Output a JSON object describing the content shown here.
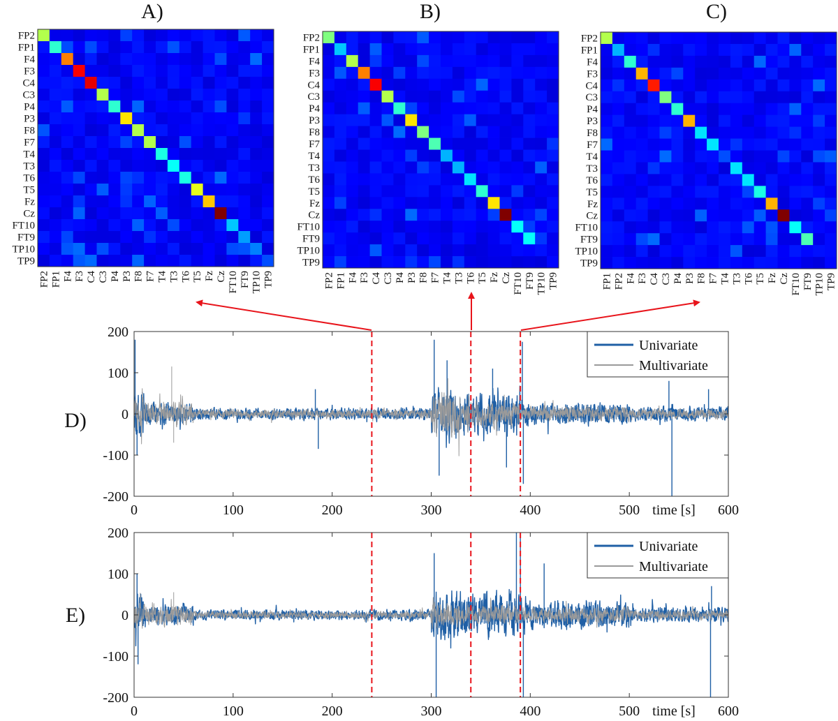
{
  "figure": {
    "labels": [
      "A)",
      "B)",
      "C)",
      "D)",
      "E)"
    ]
  },
  "chart_data": [
    {
      "type": "heatmap",
      "panel": "A)",
      "row_labels": [
        "FP2",
        "FP1",
        "F4",
        "F3",
        "C4",
        "C3",
        "P4",
        "P3",
        "F8",
        "F7",
        "T4",
        "T3",
        "T6",
        "T5",
        "Fz",
        "Cz",
        "FT10",
        "FT9",
        "TP10",
        "TP9"
      ],
      "col_labels": [
        "FP2",
        "FP1",
        "F4",
        "F3",
        "C4",
        "C3",
        "P4",
        "P3",
        "F8",
        "F7",
        "T4",
        "T3",
        "T6",
        "T5",
        "Fz",
        "Cz",
        "FT10",
        "FT9",
        "TP10",
        "TP9"
      ],
      "diagonal": [
        0.55,
        0.42,
        0.75,
        0.88,
        0.9,
        0.55,
        0.42,
        0.65,
        0.55,
        0.55,
        0.4,
        0.38,
        0.4,
        0.6,
        0.68,
        1.0,
        0.32,
        0.28,
        0.25,
        0.2
      ],
      "off_diagonal_level": 0.12,
      "colormap": "jet"
    },
    {
      "type": "heatmap",
      "panel": "B)",
      "row_labels": [
        "FP2",
        "FP1",
        "F4",
        "F3",
        "C4",
        "C3",
        "P4",
        "P3",
        "F8",
        "F7",
        "T4",
        "T3",
        "T6",
        "T5",
        "Fz",
        "Cz",
        "FT10",
        "FT9",
        "TP10",
        "TP9"
      ],
      "col_labels": [
        "FP2",
        "FP1",
        "F4",
        "F3",
        "C4",
        "C3",
        "P4",
        "P3",
        "F8",
        "F7",
        "T4",
        "T3",
        "T6",
        "T5",
        "Fz",
        "Cz",
        "FT10",
        "FT9",
        "TP10",
        "TP9"
      ],
      "diagonal": [
        0.5,
        0.32,
        0.55,
        0.75,
        0.88,
        0.55,
        0.42,
        0.65,
        0.5,
        0.45,
        0.3,
        0.3,
        0.35,
        0.42,
        0.65,
        1.0,
        0.38,
        0.38,
        0.14,
        0.13
      ],
      "off_diagonal_level": 0.12,
      "colormap": "jet"
    },
    {
      "type": "heatmap",
      "panel": "C)",
      "row_labels": [
        "FP2",
        "FP1",
        "F4",
        "F3",
        "C4",
        "C3",
        "P4",
        "P3",
        "F8",
        "F7",
        "T4",
        "T3",
        "T6",
        "T5",
        "Fz",
        "Cz",
        "FT10",
        "FT9",
        "TP10",
        "TP9"
      ],
      "col_labels": [
        "FP1",
        "FP2",
        "F4",
        "F3",
        "C4",
        "C3",
        "P4",
        "P3",
        "F8",
        "F7",
        "T4",
        "T3",
        "T6",
        "T5",
        "Fz",
        "Cz",
        "FT10",
        "FT9",
        "TP10",
        "TP9"
      ],
      "diagonal": [
        0.55,
        0.3,
        0.42,
        0.7,
        0.85,
        0.5,
        0.42,
        0.7,
        0.35,
        0.35,
        0.2,
        0.35,
        0.35,
        0.4,
        0.7,
        1.0,
        0.38,
        0.45,
        0.14,
        0.13
      ],
      "off_diagonal_level": 0.12,
      "colormap": "jet"
    },
    {
      "type": "line",
      "panel": "D)",
      "xlabel": "time [s]",
      "xlim": [
        0,
        600
      ],
      "ylim": [
        -200,
        200
      ],
      "xticks": [
        0,
        100,
        200,
        300,
        400,
        500,
        600
      ],
      "yticks": [
        200,
        100,
        0,
        -100,
        -200
      ],
      "ytick_labels": [
        "200",
        "100",
        "0",
        "-100",
        "-200"
      ],
      "markers": [
        240,
        340,
        390
      ],
      "series": [
        {
          "name": "Univariate",
          "color": "#1f5fa5",
          "segments": [
            {
              "t": [
                0,
                10
              ],
              "amp": 95
            },
            {
              "t": [
                10,
                60
              ],
              "amp": 45
            },
            {
              "t": [
                60,
                240
              ],
              "amp": 24
            },
            {
              "t": [
                240,
                300
              ],
              "amp": 24
            },
            {
              "t": [
                300,
                330
              ],
              "amp": 110
            },
            {
              "t": [
                330,
                390
              ],
              "amp": 85
            },
            {
              "t": [
                390,
                500
              ],
              "amp": 45
            },
            {
              "t": [
                500,
                600
              ],
              "amp": 30
            }
          ],
          "spikes": [
            [
              1,
              180
            ],
            [
              3,
              -100
            ],
            [
              183,
              60
            ],
            [
              186,
              -85
            ],
            [
              303,
              180
            ],
            [
              308,
              -150
            ],
            [
              316,
              130
            ],
            [
              362,
              110
            ],
            [
              376,
              -130
            ],
            [
              392,
              175
            ],
            [
              393,
              -170
            ],
            [
              540,
              80
            ],
            [
              543,
              -200
            ],
            [
              580,
              60
            ]
          ]
        },
        {
          "name": "Multivariate",
          "color": "#9a9a9a",
          "segments": [
            {
              "t": [
                0,
                10
              ],
              "amp": 70
            },
            {
              "t": [
                10,
                60
              ],
              "amp": 45
            },
            {
              "t": [
                60,
                240
              ],
              "amp": 18
            },
            {
              "t": [
                240,
                300
              ],
              "amp": 18
            },
            {
              "t": [
                300,
                330
              ],
              "amp": 100
            },
            {
              "t": [
                330,
                390
              ],
              "amp": 55
            },
            {
              "t": [
                390,
                500
              ],
              "amp": 30
            },
            {
              "t": [
                500,
                600
              ],
              "amp": 20
            }
          ],
          "spikes": [
            [
              38,
              115
            ],
            [
              40,
              -70
            ]
          ]
        }
      ]
    },
    {
      "type": "line",
      "panel": "E)",
      "xlabel": "time [s]",
      "xlim": [
        0,
        600
      ],
      "ylim": [
        -200,
        200
      ],
      "xticks": [
        0,
        100,
        200,
        300,
        400,
        500,
        600
      ],
      "yticks": [
        200,
        100,
        0,
        -100,
        -200
      ],
      "ytick_labels": [
        "200",
        "100",
        "0",
        "-100",
        "-200"
      ],
      "markers": [
        240,
        340,
        390
      ],
      "series": [
        {
          "name": "Univariate",
          "color": "#1f5fa5",
          "segments": [
            {
              "t": [
                0,
                10
              ],
              "amp": 85
            },
            {
              "t": [
                10,
                60
              ],
              "amp": 40
            },
            {
              "t": [
                60,
                240
              ],
              "amp": 20
            },
            {
              "t": [
                240,
                300
              ],
              "amp": 22
            },
            {
              "t": [
                300,
                330
              ],
              "amp": 100
            },
            {
              "t": [
                330,
                390
              ],
              "amp": 95
            },
            {
              "t": [
                390,
                500
              ],
              "amp": 55
            },
            {
              "t": [
                500,
                600
              ],
              "amp": 30
            }
          ],
          "spikes": [
            [
              3,
              100
            ],
            [
              4,
              -120
            ],
            [
              303,
              150
            ],
            [
              305,
              -200
            ],
            [
              386,
              200
            ],
            [
              390,
              195
            ],
            [
              393,
              -200
            ],
            [
              414,
              125
            ],
            [
              582,
              -200
            ],
            [
              583,
              70
            ]
          ]
        },
        {
          "name": "Multivariate",
          "color": "#9a9a9a",
          "segments": [
            {
              "t": [
                0,
                10
              ],
              "amp": 55
            },
            {
              "t": [
                10,
                60
              ],
              "amp": 40
            },
            {
              "t": [
                60,
                240
              ],
              "amp": 15
            },
            {
              "t": [
                240,
                300
              ],
              "amp": 15
            },
            {
              "t": [
                300,
                330
              ],
              "amp": 55
            },
            {
              "t": [
                330,
                390
              ],
              "amp": 40
            },
            {
              "t": [
                390,
                500
              ],
              "amp": 32
            },
            {
              "t": [
                500,
                600
              ],
              "amp": 20
            }
          ],
          "spikes": [
            [
              40,
              55
            ]
          ]
        }
      ]
    }
  ]
}
